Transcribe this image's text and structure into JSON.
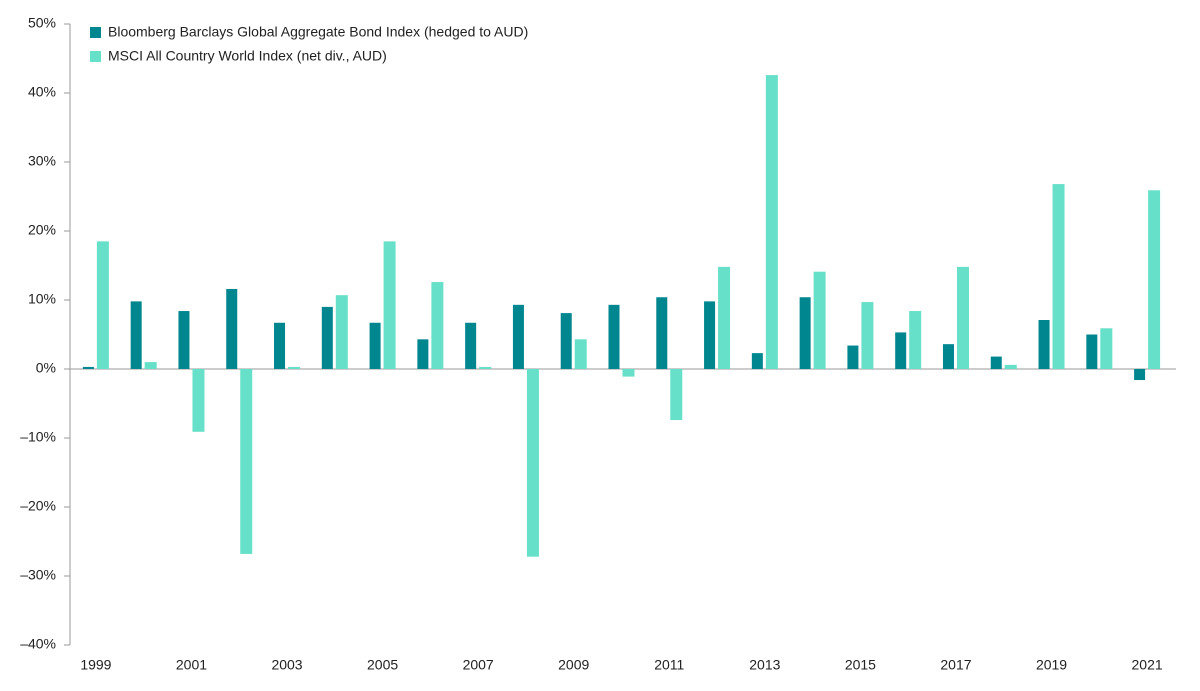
{
  "chart_data": {
    "type": "bar",
    "categories": [
      "1999",
      null,
      "2001",
      null,
      "2003",
      null,
      "2005",
      null,
      "2007",
      null,
      "2009",
      null,
      "2011",
      null,
      "2013",
      null,
      "2015",
      null,
      "2017",
      null,
      "2019",
      null,
      "2021"
    ],
    "series": [
      {
        "name": "Bloomberg Barclays Global Aggregate Bond Index (hedged to AUD)",
        "color": "#00868f",
        "values": [
          0.3,
          9.8,
          8.4,
          11.6,
          6.7,
          9.0,
          6.7,
          4.3,
          6.7,
          9.3,
          8.1,
          9.3,
          10.4,
          9.8,
          2.3,
          10.4,
          3.4,
          5.3,
          3.6,
          1.8,
          7.1,
          5.0,
          -1.6
        ]
      },
      {
        "name": "MSCI All Country World Index (net div., AUD)",
        "color": "#66e0c8",
        "values": [
          18.5,
          1.0,
          -9.1,
          -26.8,
          0.3,
          10.7,
          18.5,
          12.6,
          0.3,
          -27.2,
          4.3,
          -1.1,
          -7.4,
          14.8,
          42.6,
          14.1,
          9.7,
          8.4,
          14.8,
          0.6,
          26.8,
          5.9,
          25.9
        ]
      }
    ],
    "ylim": [
      -40,
      50
    ],
    "yticks": [
      {
        "value": -40,
        "label": "–40%"
      },
      {
        "value": -30,
        "label": "–30%"
      },
      {
        "value": -20,
        "label": "–20%"
      },
      {
        "value": -10,
        "label": "–10%"
      },
      {
        "value": 0,
        "label": "0%"
      },
      {
        "value": 10,
        "label": "10%"
      },
      {
        "value": 20,
        "label": "20%"
      },
      {
        "value": 30,
        "label": "30%"
      },
      {
        "value": 40,
        "label": "40%"
      },
      {
        "value": 50,
        "label": "50%"
      }
    ],
    "legend": "top-left"
  }
}
